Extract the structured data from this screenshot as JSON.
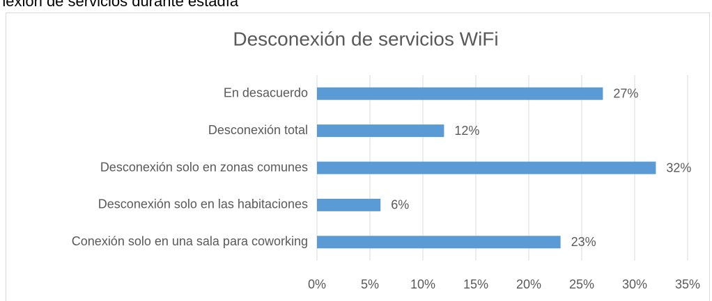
{
  "heading": "nexión de servicios durante estadía",
  "chart_data": {
    "type": "hbar",
    "title": "Desconexión de servicios WiFi",
    "categories": [
      "En desacuerdo",
      "Desconexión total",
      "Desconexión solo en zonas comunes",
      "Desconexión solo en las habitaciones",
      "Conexión solo en una sala para coworking"
    ],
    "values": [
      27,
      12,
      32,
      6,
      23
    ],
    "value_labels": [
      "27%",
      "12%",
      "32%",
      "6%",
      "23%"
    ],
    "color": "#5b9bd5",
    "xlim": [
      0,
      35
    ],
    "xticks": [
      {
        "value": 0,
        "label": "0%"
      },
      {
        "value": 5,
        "label": "5%"
      },
      {
        "value": 10,
        "label": "10%"
      },
      {
        "value": 15,
        "label": "15%"
      },
      {
        "value": 20,
        "label": "20%"
      },
      {
        "value": 25,
        "label": "25%"
      },
      {
        "value": 30,
        "label": "30%"
      },
      {
        "value": 35,
        "label": "35%"
      }
    ],
    "grid": true
  }
}
